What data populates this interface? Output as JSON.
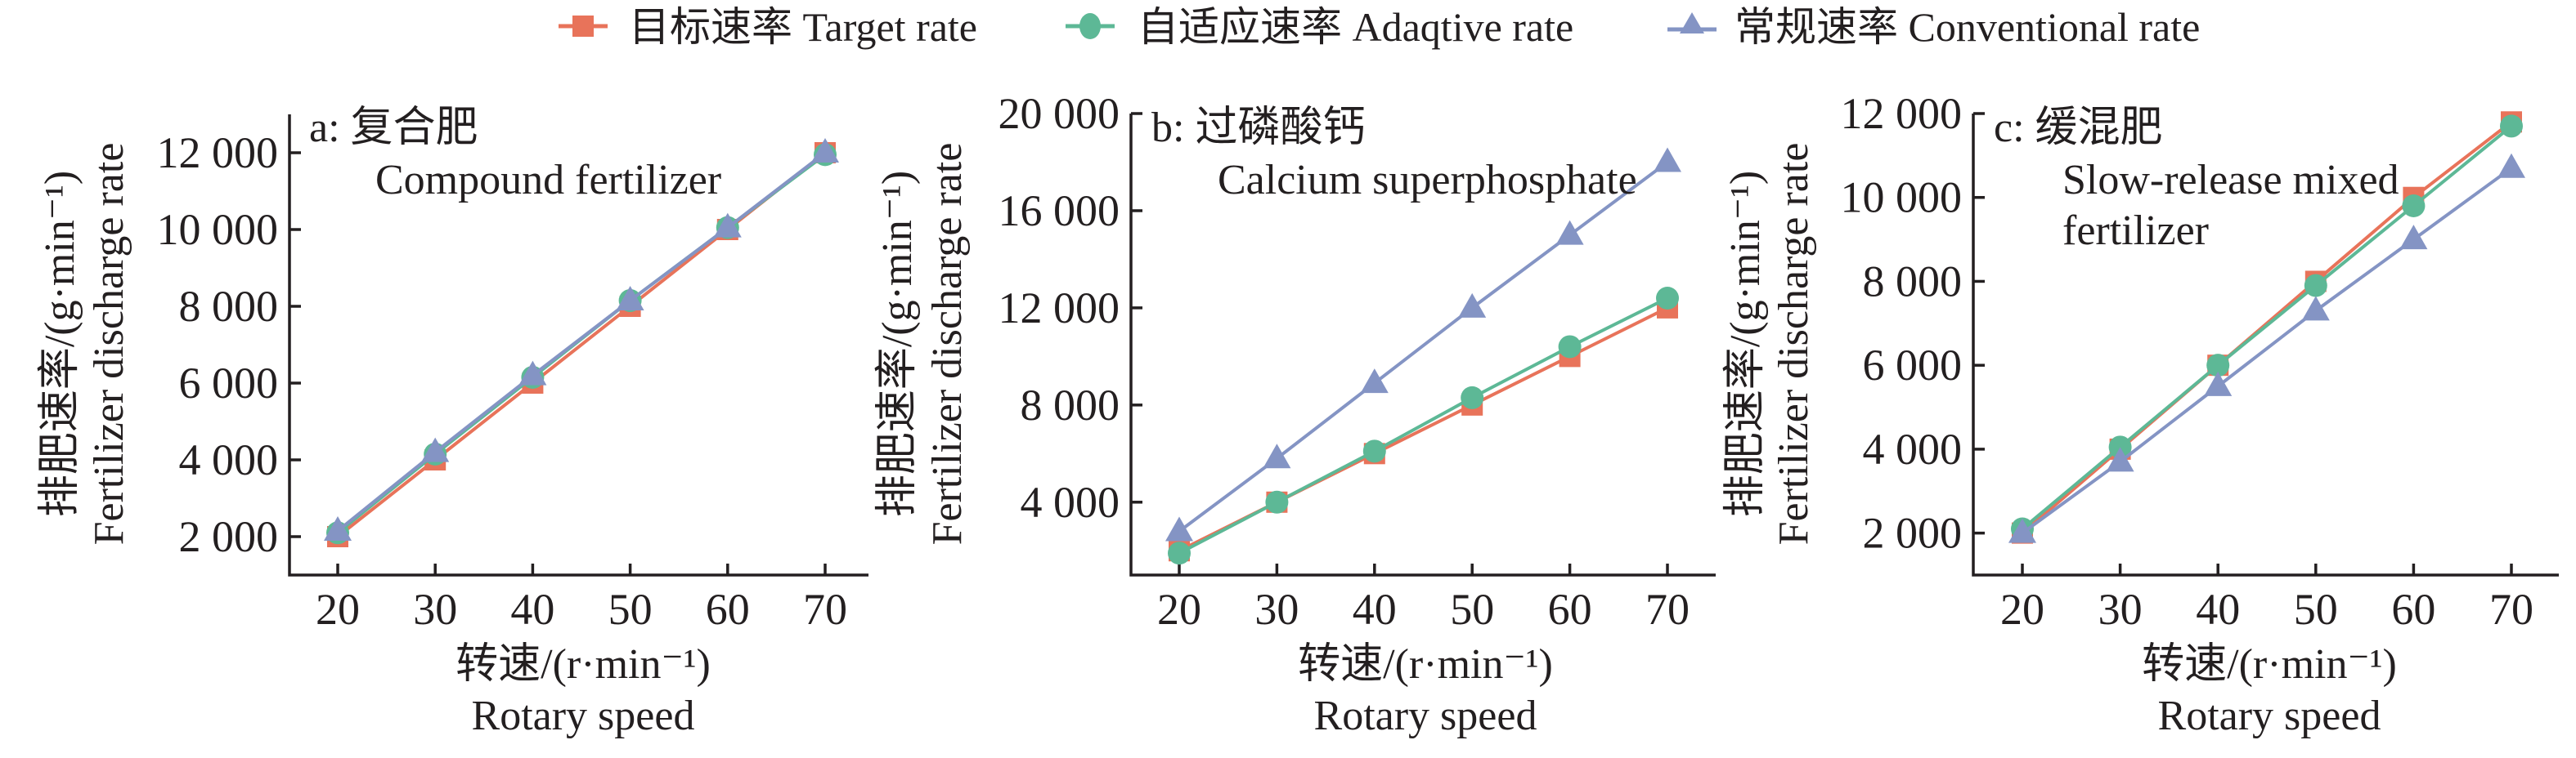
{
  "legend": {
    "items": [
      {
        "label": "目标速率 Target rate",
        "color": "#E8735A",
        "marker": "square"
      },
      {
        "label": "自适应速率 Adaqtive rate",
        "color": "#5DB896",
        "marker": "circle"
      },
      {
        "label": "常规速率 Conventional  rate",
        "color": "#8494C4",
        "marker": "triangle"
      }
    ]
  },
  "chart_data": [
    {
      "type": "line",
      "title": "a: 复合肥",
      "subtitle": [
        "Compound fertilizer"
      ],
      "xlabel": [
        "转速/(r·min⁻¹)",
        "Rotary speed"
      ],
      "ylabel": [
        "排肥速率/(g·min⁻¹)",
        "Fertilizer discharge rate"
      ],
      "x": [
        20,
        30,
        40,
        50,
        60,
        70
      ],
      "xlim": [
        15,
        75.5
      ],
      "ylim": [
        1000,
        13000
      ],
      "yticks": [
        2000,
        4000,
        6000,
        8000,
        10000,
        12000
      ],
      "ytick_labels": [
        "2 000",
        "4 000",
        "6 000",
        "8 000",
        "10 000",
        "12 000"
      ],
      "xtick_labels": [
        "20",
        "30",
        "40",
        "50",
        "60",
        "70"
      ],
      "series": [
        {
          "name": "目标速率 Target rate",
          "values": [
            2000,
            4000,
            6000,
            8000,
            10000,
            12000
          ]
        },
        {
          "name": "自适应速率 Adaqtive rate",
          "values": [
            2100,
            4150,
            6150,
            8150,
            10050,
            11950
          ]
        },
        {
          "name": "常规速率 Conventional rate",
          "values": [
            2150,
            4200,
            6200,
            8150,
            10050,
            12000
          ]
        }
      ]
    },
    {
      "type": "line",
      "title": "b: 过磷酸钙",
      "subtitle": [
        "Calcium superphosphate"
      ],
      "xlabel": [
        "转速/(r·min⁻¹)",
        "Rotary speed"
      ],
      "ylabel": [
        "排肥速率/(g·min⁻¹)",
        "Fertilizer discharge rate"
      ],
      "x": [
        20,
        30,
        40,
        50,
        60,
        70
      ],
      "xlim": [
        15,
        75
      ],
      "ylim": [
        1000,
        20000
      ],
      "yticks": [
        4000,
        8000,
        12000,
        16000,
        20000
      ],
      "ytick_labels": [
        "4 000",
        "8 000",
        "12 000",
        "16 000",
        "20 000"
      ],
      "xtick_labels": [
        "20",
        "30",
        "40",
        "50",
        "60",
        "70"
      ],
      "series": [
        {
          "name": "目标速率 Target rate",
          "values": [
            2000,
            4000,
            6000,
            8000,
            10000,
            12000
          ]
        },
        {
          "name": "自适应速率 Adaqtive rate",
          "values": [
            1900,
            4000,
            6100,
            8300,
            10400,
            12400
          ]
        },
        {
          "name": "常规速率 Conventional rate",
          "values": [
            2800,
            5800,
            8900,
            12000,
            15000,
            18000
          ]
        }
      ]
    },
    {
      "type": "line",
      "title": "c: 缓混肥",
      "subtitle": [
        "Slow-release mixed",
        "fertilizer"
      ],
      "xlabel": [
        "转速/(r·min⁻¹)",
        "Rotary speed"
      ],
      "ylabel": [
        "排肥速率/(g·min⁻¹)",
        "Fertilizer discharge rate"
      ],
      "x": [
        20,
        30,
        40,
        50,
        60,
        70
      ],
      "xlim": [
        15,
        74.5
      ],
      "ylim": [
        1000,
        12000
      ],
      "yticks": [
        2000,
        4000,
        6000,
        8000,
        10000,
        12000
      ],
      "ytick_labels": [
        "2 000",
        "4 000",
        "6 000",
        "8 000",
        "10 000",
        "12 000"
      ],
      "xtick_labels": [
        "20",
        "30",
        "40",
        "50",
        "60",
        "70"
      ],
      "series": [
        {
          "name": "目标速率 Target rate",
          "values": [
            2000,
            4000,
            6000,
            8000,
            10000,
            11800
          ]
        },
        {
          "name": "自适应速率 Adaqtive rate",
          "values": [
            2100,
            4050,
            6000,
            7900,
            9800,
            11700
          ]
        },
        {
          "name": "常规速率 Conventional rate",
          "values": [
            2000,
            3700,
            5500,
            7300,
            9000,
            10700
          ]
        }
      ]
    }
  ]
}
